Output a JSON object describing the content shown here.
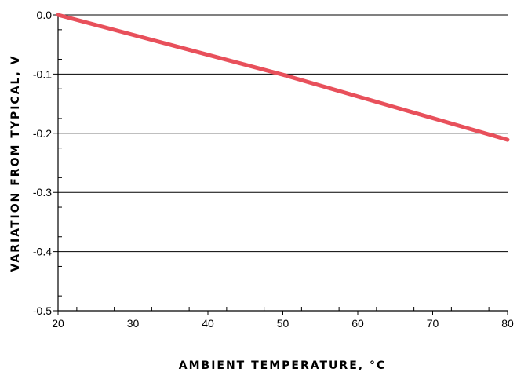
{
  "chart_data": {
    "type": "line",
    "title": "",
    "xlabel": "AMBIENT TEMPERATURE, °C",
    "ylabel": "VARIATION FROM TYPICAL, V",
    "xlim": [
      20,
      80
    ],
    "ylim": [
      -0.5,
      0.0
    ],
    "x_ticks": [
      "20",
      "30",
      "40",
      "50",
      "60",
      "70",
      "80"
    ],
    "y_ticks": [
      "0.0",
      "-0.1",
      "-0.2",
      "-0.3",
      "-0.4",
      "-0.5"
    ],
    "grid": "horizontal",
    "line_color": "#e8505b",
    "series": [
      {
        "x": [
          20,
          50,
          80
        ],
        "y": [
          0.0,
          -0.101,
          -0.211
        ]
      }
    ]
  }
}
